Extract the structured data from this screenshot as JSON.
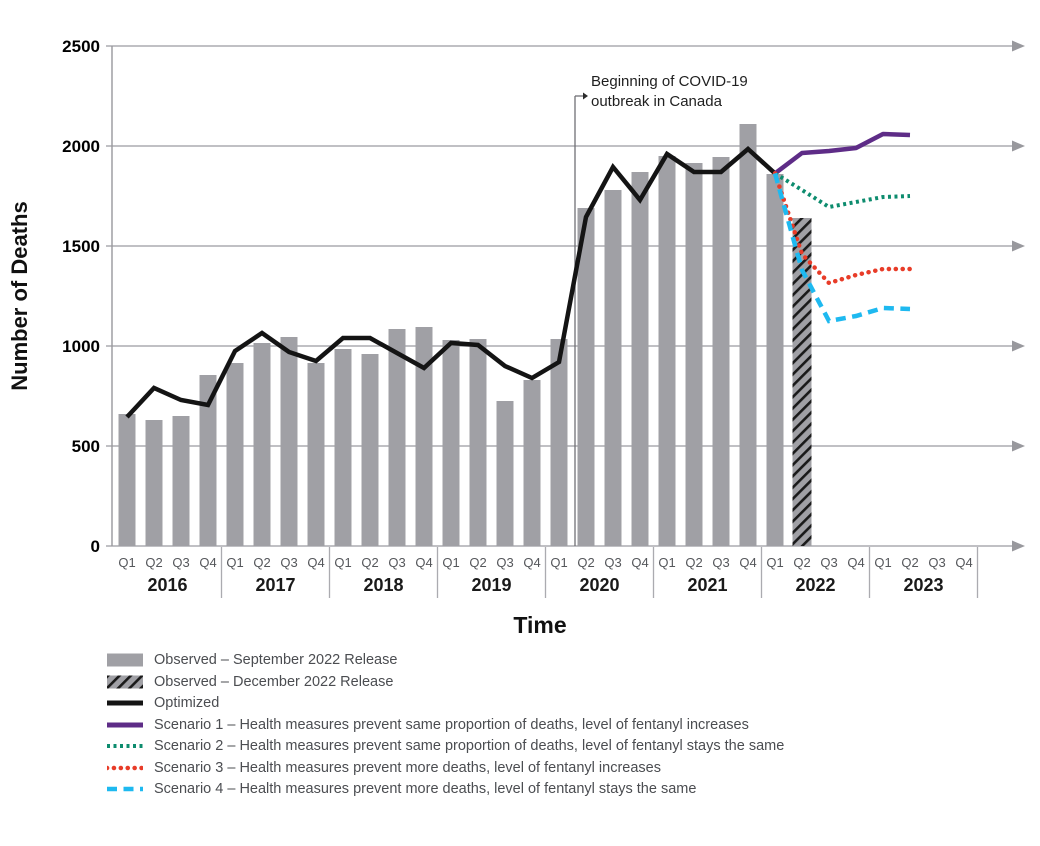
{
  "chart_data": {
    "type": "bar+line",
    "title": "",
    "ylabel": "Number of Deaths",
    "xlabel": "Time",
    "ylim": [
      0,
      2500
    ],
    "yticks": [
      0,
      500,
      1000,
      1500,
      2000,
      2500
    ],
    "grid": "horizontal gridlines with right arrowheads",
    "legend_position": "bottom-left",
    "years": [
      "2016",
      "2017",
      "2018",
      "2019",
      "2020",
      "2021",
      "2022",
      "2023"
    ],
    "quarter_labels": [
      "Q1",
      "Q2",
      "Q3",
      "Q4"
    ],
    "categories": [
      "2016 Q1",
      "2016 Q2",
      "2016 Q3",
      "2016 Q4",
      "2017 Q1",
      "2017 Q2",
      "2017 Q3",
      "2017 Q4",
      "2018 Q1",
      "2018 Q2",
      "2018 Q3",
      "2018 Q4",
      "2019 Q1",
      "2019 Q2",
      "2019 Q3",
      "2019 Q4",
      "2020 Q1",
      "2020 Q2",
      "2020 Q3",
      "2020 Q4",
      "2021 Q1",
      "2021 Q2",
      "2021 Q3",
      "2021 Q4",
      "2022 Q1",
      "2022 Q2",
      "2022 Q3",
      "2022 Q4",
      "2023 Q1",
      "2023 Q2",
      "2023 Q3",
      "2023 Q4"
    ],
    "annotation": {
      "text_lines": [
        "Beginning of COVID-19",
        "outbreak in Canada"
      ],
      "marker_quarter_index": 17
    },
    "series": [
      {
        "name": "Observed – September 2022 Release",
        "type": "bar",
        "fill": "solid",
        "color": "#a0a0a5",
        "start_index": 0,
        "values": [
          660,
          630,
          650,
          855,
          915,
          1015,
          1045,
          915,
          985,
          960,
          1085,
          1095,
          1030,
          1035,
          725,
          830,
          1035,
          1690,
          1780,
          1870,
          1950,
          1915,
          1945,
          2110,
          1860
        ]
      },
      {
        "name": "Observed – December 2022 Release",
        "type": "bar",
        "fill": "hatched",
        "color": "#a0a0a5",
        "hatch_color": "#1a1a1a",
        "start_index": 25,
        "values": [
          1640
        ]
      },
      {
        "name": "Optimized",
        "type": "line",
        "style": "solid",
        "color": "#141414",
        "start_index": 0,
        "values": [
          645,
          790,
          730,
          705,
          975,
          1065,
          970,
          925,
          1040,
          1040,
          965,
          890,
          1015,
          1005,
          900,
          840,
          920,
          1645,
          1895,
          1730,
          1960,
          1870,
          1870,
          1985,
          1863
        ]
      },
      {
        "name": "Scenario 1 – Health measures prevent same proportion of deaths, level of fentanyl increases",
        "type": "line",
        "style": "solid",
        "color": "#5e2c87",
        "start_index": 24,
        "values": [
          1863,
          1965,
          1975,
          1990,
          2060,
          2055
        ]
      },
      {
        "name": "Scenario 2 – Health measures prevent same proportion of deaths, level of fentanyl stays the same",
        "type": "line",
        "style": "dotted-square",
        "color": "#0d8c6e",
        "start_index": 24,
        "values": [
          1863,
          1780,
          1695,
          1720,
          1745,
          1750
        ]
      },
      {
        "name": "Scenario 3 – Health measures prevent more deaths, level of fentanyl increases",
        "type": "line",
        "style": "dotted-round",
        "color": "#e83c28",
        "start_index": 24,
        "values": [
          1863,
          1460,
          1315,
          1355,
          1385,
          1385
        ]
      },
      {
        "name": "Scenario 4 – Health measures prevent more deaths, level of fentanyl stays the same",
        "type": "line",
        "style": "dashed",
        "color": "#1eb9f0",
        "start_index": 24,
        "values": [
          1863,
          1380,
          1125,
          1150,
          1190,
          1185
        ]
      }
    ],
    "colors": {
      "bar_gray": "#a0a0a5",
      "gridline": "#ababb0",
      "axis": "#98989d",
      "quarter_label": "#55575b",
      "year_label": "#1a1a1a",
      "legend_text": "#4b4d51"
    }
  }
}
